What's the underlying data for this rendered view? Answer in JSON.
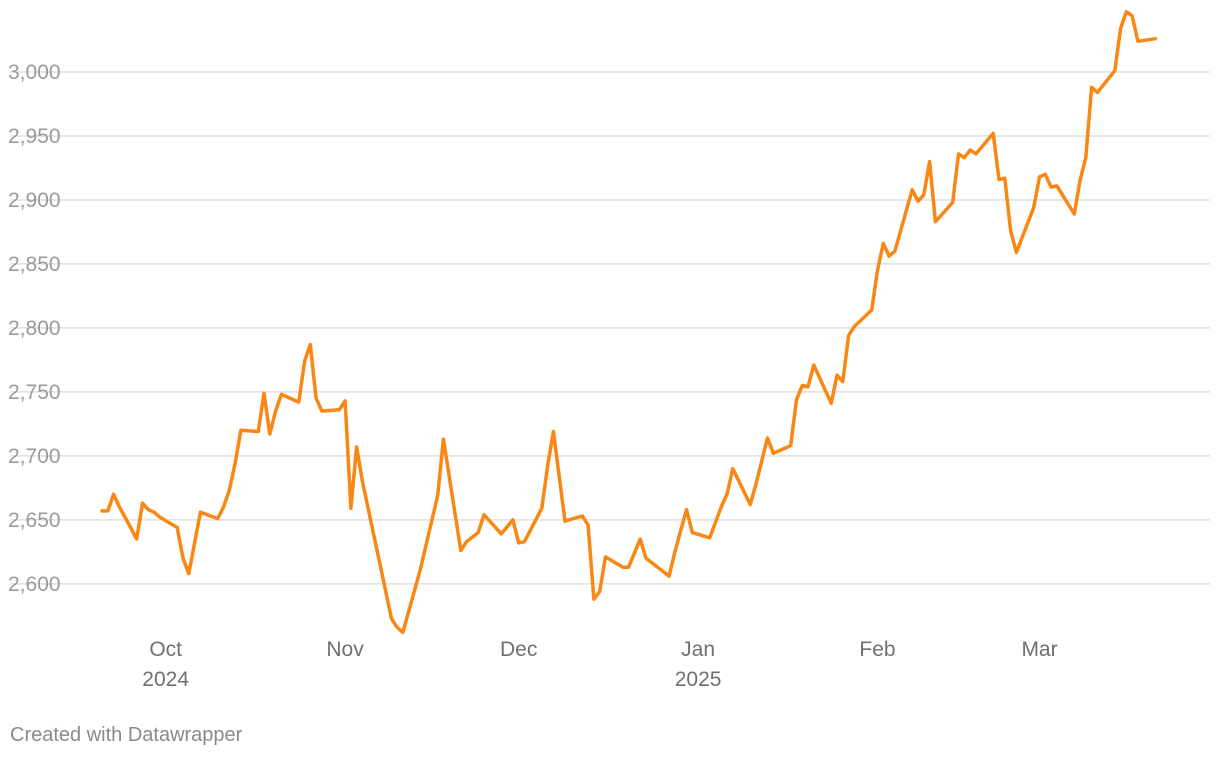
{
  "credit": "Created with Datawrapper",
  "colors": {
    "line": "#fa8714",
    "grid": "#e1e1e1",
    "tick_text": "#9a9a9a"
  },
  "chart_data": {
    "type": "line",
    "title": "",
    "xlabel": "",
    "ylabel": "",
    "grid": "horizontal",
    "legend": "none",
    "ylim": [
      2560,
      3050
    ],
    "xlim": [
      "2024-09-20",
      "2025-03-27"
    ],
    "yticks": [
      2600,
      2650,
      2700,
      2750,
      2800,
      2850,
      2900,
      2950,
      3000
    ],
    "ytick_labels": [
      "2,600",
      "2,650",
      "2,700",
      "2,750",
      "2,800",
      "2,850",
      "2,900",
      "2,950",
      "3,000"
    ],
    "xticks": [
      {
        "date": "2024-10-01",
        "label": "Oct",
        "sublabel": "2024"
      },
      {
        "date": "2024-11-01",
        "label": "Nov",
        "sublabel": ""
      },
      {
        "date": "2024-12-01",
        "label": "Dec",
        "sublabel": ""
      },
      {
        "date": "2025-01-01",
        "label": "Jan",
        "sublabel": "2025"
      },
      {
        "date": "2025-02-01",
        "label": "Feb",
        "sublabel": ""
      },
      {
        "date": "2025-03-01",
        "label": "Mar",
        "sublabel": ""
      }
    ],
    "series": [
      {
        "points": [
          [
            "2024-09-20",
            2657
          ],
          [
            "2024-09-21",
            2657
          ],
          [
            "2024-09-22",
            2670
          ],
          [
            "2024-09-23",
            2660
          ],
          [
            "2024-09-24",
            2652
          ],
          [
            "2024-09-26",
            2635
          ],
          [
            "2024-09-27",
            2663
          ],
          [
            "2024-09-28",
            2658
          ],
          [
            "2024-09-29",
            2656
          ],
          [
            "2024-09-30",
            2652
          ],
          [
            "2024-10-03",
            2644
          ],
          [
            "2024-10-04",
            2620
          ],
          [
            "2024-10-05",
            2608
          ],
          [
            "2024-10-07",
            2656
          ],
          [
            "2024-10-10",
            2651
          ],
          [
            "2024-10-11",
            2660
          ],
          [
            "2024-10-12",
            2673
          ],
          [
            "2024-10-13",
            2694
          ],
          [
            "2024-10-14",
            2720
          ],
          [
            "2024-10-17",
            2719
          ],
          [
            "2024-10-18",
            2749
          ],
          [
            "2024-10-19",
            2717
          ],
          [
            "2024-10-20",
            2735
          ],
          [
            "2024-10-21",
            2748
          ],
          [
            "2024-10-24",
            2742
          ],
          [
            "2024-10-25",
            2774
          ],
          [
            "2024-10-26",
            2787
          ],
          [
            "2024-10-27",
            2745
          ],
          [
            "2024-10-28",
            2735
          ],
          [
            "2024-10-31",
            2736
          ],
          [
            "2024-11-01",
            2743
          ],
          [
            "2024-11-02",
            2659
          ],
          [
            "2024-11-03",
            2707
          ],
          [
            "2024-11-04",
            2680
          ],
          [
            "2024-11-07",
            2616
          ],
          [
            "2024-11-09",
            2573
          ],
          [
            "2024-11-10",
            2566
          ],
          [
            "2024-11-11",
            2562
          ],
          [
            "2024-11-14",
            2611
          ],
          [
            "2024-11-17",
            2669
          ],
          [
            "2024-11-18",
            2713
          ],
          [
            "2024-11-21",
            2626
          ],
          [
            "2024-11-22",
            2633
          ],
          [
            "2024-11-24",
            2640
          ],
          [
            "2024-11-25",
            2654
          ],
          [
            "2024-11-28",
            2639
          ],
          [
            "2024-11-30",
            2650
          ],
          [
            "2024-12-01",
            2632
          ],
          [
            "2024-12-02",
            2633
          ],
          [
            "2024-12-05",
            2659
          ],
          [
            "2024-12-06",
            2692
          ],
          [
            "2024-12-07",
            2719
          ],
          [
            "2024-12-09",
            2649
          ],
          [
            "2024-12-12",
            2653
          ],
          [
            "2024-12-13",
            2646
          ],
          [
            "2024-12-14",
            2588
          ],
          [
            "2024-12-15",
            2594
          ],
          [
            "2024-12-16",
            2621
          ],
          [
            "2024-12-19",
            2613
          ],
          [
            "2024-12-20",
            2613
          ],
          [
            "2024-12-22",
            2635
          ],
          [
            "2024-12-23",
            2620
          ],
          [
            "2024-12-27",
            2606
          ],
          [
            "2024-12-28",
            2625
          ],
          [
            "2024-12-30",
            2658
          ],
          [
            "2024-12-31",
            2640
          ],
          [
            "2025-01-03",
            2636
          ],
          [
            "2025-01-05",
            2660
          ],
          [
            "2025-01-06",
            2670
          ],
          [
            "2025-01-07",
            2690
          ],
          [
            "2025-01-10",
            2662
          ],
          [
            "2025-01-11",
            2678
          ],
          [
            "2025-01-13",
            2714
          ],
          [
            "2025-01-14",
            2702
          ],
          [
            "2025-01-17",
            2708
          ],
          [
            "2025-01-18",
            2744
          ],
          [
            "2025-01-19",
            2755
          ],
          [
            "2025-01-20",
            2754
          ],
          [
            "2025-01-21",
            2771
          ],
          [
            "2025-01-24",
            2741
          ],
          [
            "2025-01-25",
            2763
          ],
          [
            "2025-01-26",
            2758
          ],
          [
            "2025-01-27",
            2794
          ],
          [
            "2025-01-28",
            2801
          ],
          [
            "2025-01-31",
            2814
          ],
          [
            "2025-02-01",
            2845
          ],
          [
            "2025-02-02",
            2866
          ],
          [
            "2025-02-03",
            2856
          ],
          [
            "2025-02-04",
            2860
          ],
          [
            "2025-02-07",
            2908
          ],
          [
            "2025-02-08",
            2899
          ],
          [
            "2025-02-09",
            2904
          ],
          [
            "2025-02-10",
            2930
          ],
          [
            "2025-02-11",
            2883
          ],
          [
            "2025-02-14",
            2898
          ],
          [
            "2025-02-15",
            2936
          ],
          [
            "2025-02-16",
            2933
          ],
          [
            "2025-02-17",
            2939
          ],
          [
            "2025-02-18",
            2936
          ],
          [
            "2025-02-21",
            2952
          ],
          [
            "2025-02-22",
            2916
          ],
          [
            "2025-02-23",
            2917
          ],
          [
            "2025-02-24",
            2876
          ],
          [
            "2025-02-25",
            2859
          ],
          [
            "2025-02-28",
            2894
          ],
          [
            "2025-03-01",
            2918
          ],
          [
            "2025-03-02",
            2920
          ],
          [
            "2025-03-03",
            2910
          ],
          [
            "2025-03-04",
            2911
          ],
          [
            "2025-03-07",
            2889
          ],
          [
            "2025-03-08",
            2915
          ],
          [
            "2025-03-09",
            2933
          ],
          [
            "2025-03-10",
            2988
          ],
          [
            "2025-03-11",
            2984
          ],
          [
            "2025-03-14",
            3001
          ],
          [
            "2025-03-15",
            3034
          ],
          [
            "2025-03-16",
            3047
          ],
          [
            "2025-03-17",
            3044
          ],
          [
            "2025-03-18",
            3024
          ],
          [
            "2025-03-21",
            3026
          ]
        ]
      }
    ]
  }
}
